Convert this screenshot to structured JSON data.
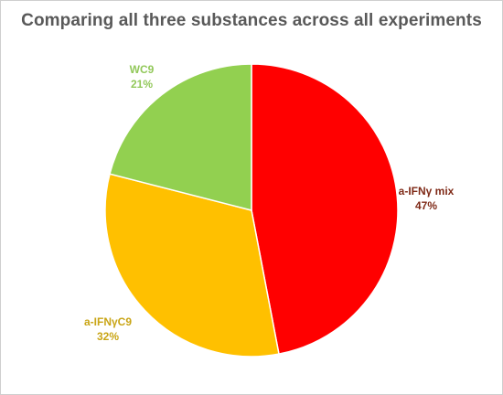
{
  "chart_data": {
    "type": "pie",
    "title": "Comparing all three substances across all experiments",
    "slices": [
      {
        "name": "a-IFNγ mix",
        "value": 47,
        "label": "47%",
        "color": "#ff0000",
        "label_color": "#7f2a17"
      },
      {
        "name": "a-IFNγC9",
        "value": 32,
        "label": "32%",
        "color": "#ffc000",
        "label_color": "#c9a516"
      },
      {
        "name": "WC9",
        "value": 21,
        "label": "21%",
        "color": "#92d050",
        "label_color": "#92c85a"
      }
    ],
    "legend": "none"
  }
}
